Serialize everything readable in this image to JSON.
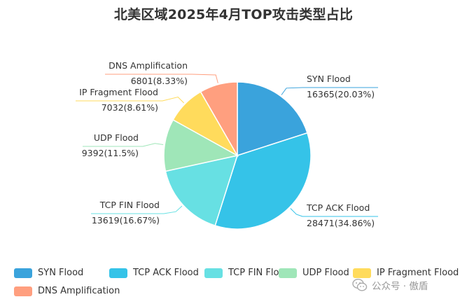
{
  "chart_data": {
    "type": "pie",
    "title": "北美区域2025年4月TOP攻击类型占比",
    "slices": [
      {
        "name": "SYN Flood",
        "value": 16365,
        "percent": "20.03%",
        "color": "#3aa3dc"
      },
      {
        "name": "TCP ACK Flood",
        "value": 28471,
        "percent": "34.86%",
        "color": "#35c3e8"
      },
      {
        "name": "TCP FIN Flood",
        "value": 13619,
        "percent": "16.67%",
        "color": "#67e0e3"
      },
      {
        "name": "UDP Flood",
        "value": 9392,
        "percent": "11.5%",
        "color": "#9fe6b8"
      },
      {
        "name": "IP Fragment Flood",
        "value": 7032,
        "percent": "8.61%",
        "color": "#ffdb5c"
      },
      {
        "name": "DNS Amplification",
        "value": 6801,
        "percent": "8.33%",
        "color": "#ff9f7f"
      }
    ],
    "legend_position": "bottom"
  },
  "watermark": {
    "text": "公众号 · 傲盾"
  }
}
